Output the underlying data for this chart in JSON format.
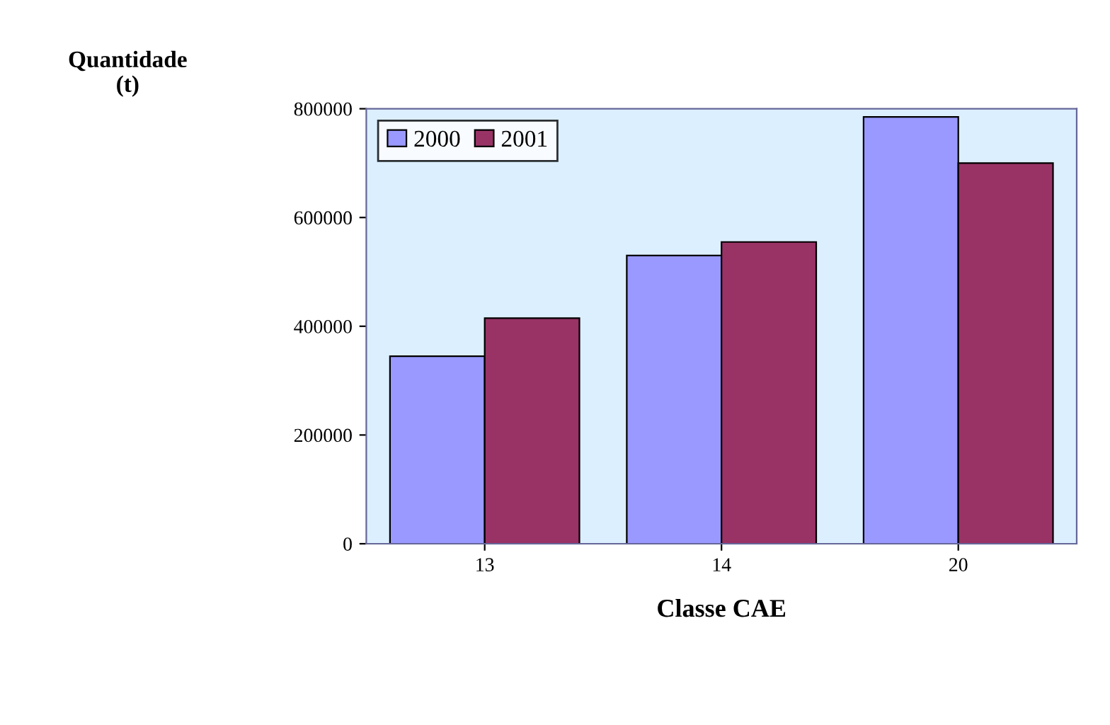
{
  "chart_data": {
    "type": "bar",
    "xlabel": "Classe CAE",
    "ylabel": "Quantidade\n(t)",
    "categories": [
      "13",
      "14",
      "20"
    ],
    "series": [
      {
        "name": "2000",
        "color": "#9999ff",
        "values": [
          345000,
          530000,
          785000
        ]
      },
      {
        "name": "2001",
        "color": "#993366",
        "values": [
          415000,
          555000,
          700000
        ]
      }
    ],
    "ylim": [
      0,
      800000
    ],
    "yticks": [
      0,
      200000,
      400000,
      600000,
      800000
    ],
    "grid": false,
    "legend": "top left"
  }
}
